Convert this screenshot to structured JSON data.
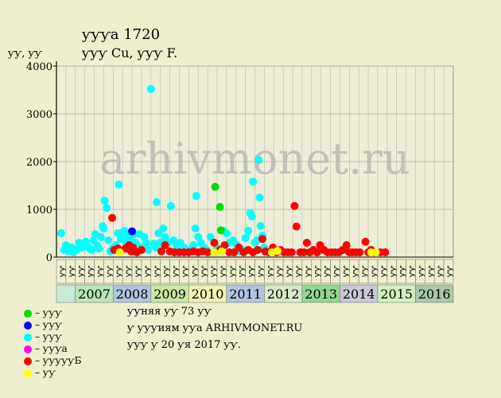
{
  "title": "ƴƴƴa 1720",
  "subtitle": "ƴƴƴ Cu, ƴƴƴ F.",
  "y_unit": "ƴƴ, ƴƴ",
  "watermark": "arhivmonet.ru",
  "legend": [
    {
      "label": "– ƴƴƴ",
      "color": "#00dd00"
    },
    {
      "label": "– ƴƴƴ",
      "color": "#0000ff"
    },
    {
      "label": "– ƴƴƴ",
      "color": "#00ffff"
    },
    {
      "label": "– ƴƴƴa",
      "color": "#ff00ff"
    },
    {
      "label": "– ƴƴƴƴƴБ",
      "color": "#ff0000"
    },
    {
      "label": "– ƴƴ",
      "color": "#ffff00"
    }
  ],
  "notes": [
    "ƴƴняя ƴƴ 73 ƴƴ",
    "ƴ ƴƴƴиям ƴƴa ARHIVMONET.RU",
    "ƴƴƴ ƴ 20 ƴя 2017 ƴƴ."
  ],
  "chart_data": {
    "type": "scatter",
    "ylim": [
      0,
      4000
    ],
    "yticks": [
      0,
      1000,
      2000,
      3000,
      4000
    ],
    "grid": true,
    "years": [
      {
        "label": "2007",
        "color": "#b8e6b8"
      },
      {
        "label": "2008",
        "color": "#b0c4de"
      },
      {
        "label": "2009",
        "color": "#c8e6a0"
      },
      {
        "label": "2010",
        "color": "#f0f0b0"
      },
      {
        "label": "2011",
        "color": "#b0c4de"
      },
      {
        "label": "2012",
        "color": "#d8e8c8"
      },
      {
        "label": "2013",
        "color": "#90d890"
      },
      {
        "label": "2014",
        "color": "#c8c8d8"
      },
      {
        "label": "2015",
        "color": "#d0f0c0"
      },
      {
        "label": "2016",
        "color": "#a8c8a8"
      }
    ],
    "first_block_color": "#c8e8d8",
    "quarter_labels": [
      "ƴƴ",
      "ƴƴ",
      "ƴƴ",
      "ƴƴ",
      "ƴƴ",
      "ƴƴ",
      "ƴƴ",
      "ƴƴ",
      "ƴƴ",
      "ƴƴ",
      "ƴƴ",
      "ƴƴ",
      "ƴƴ",
      "ƴƴ",
      "ƴƴ",
      "ƴƴ",
      "ƴƴ",
      "ƴƴ",
      "ƴƴ",
      "ƴƴ",
      "ƴƴ",
      "ƴƴ",
      "ƴƴ",
      "ƴƴ",
      "ƴƴ",
      "ƴƴ",
      "ƴƴ",
      "ƴƴ",
      "ƴƴ",
      "ƴƴ",
      "ƴƴ",
      "ƴƴ",
      "ƴƴ",
      "ƴƴ",
      "ƴƴ",
      "ƴƴ",
      "ƴƴ",
      "ƴƴ",
      "ƴƴ",
      "ƴƴ",
      "ƴƴ",
      "ƴƴ"
    ],
    "series": [
      {
        "name": "– ƴƴƴ",
        "color": "#00ffff",
        "points": [
          [
            0.0,
            500
          ],
          [
            0.3,
            150
          ],
          [
            0.5,
            250
          ],
          [
            0.8,
            120
          ],
          [
            1.1,
            200
          ],
          [
            1.3,
            100
          ],
          [
            1.6,
            150
          ],
          [
            1.9,
            300
          ],
          [
            2.2,
            200
          ],
          [
            2.6,
            320
          ],
          [
            2.9,
            200
          ],
          [
            3.2,
            150
          ],
          [
            3.4,
            350
          ],
          [
            3.6,
            480
          ],
          [
            3.8,
            250
          ],
          [
            4.0,
            180
          ],
          [
            4.2,
            420
          ],
          [
            4.4,
            650
          ],
          [
            4.5,
            600
          ],
          [
            4.6,
            1180
          ],
          [
            4.8,
            1030
          ],
          [
            5.0,
            350
          ],
          [
            5.2,
            120
          ],
          [
            5.5,
            200
          ],
          [
            5.8,
            250
          ],
          [
            6.0,
            500
          ],
          [
            6.1,
            1520
          ],
          [
            6.3,
            380
          ],
          [
            6.5,
            520
          ],
          [
            6.7,
            550
          ],
          [
            6.9,
            300
          ],
          [
            7.1,
            420
          ],
          [
            7.3,
            350
          ],
          [
            7.5,
            500
          ],
          [
            7.7,
            480
          ],
          [
            7.9,
            300
          ],
          [
            8.1,
            200
          ],
          [
            8.3,
            480
          ],
          [
            8.5,
            200
          ],
          [
            8.8,
            420
          ],
          [
            9.0,
            300
          ],
          [
            9.2,
            150
          ],
          [
            9.5,
            3520
          ],
          [
            9.8,
            280
          ],
          [
            10.0,
            200
          ],
          [
            10.1,
            1150
          ],
          [
            10.3,
            500
          ],
          [
            10.5,
            300
          ],
          [
            10.8,
            600
          ],
          [
            11.0,
            420
          ],
          [
            11.3,
            300
          ],
          [
            11.6,
            1070
          ],
          [
            11.9,
            350
          ],
          [
            12.2,
            250
          ],
          [
            12.6,
            300
          ],
          [
            13.0,
            200
          ],
          [
            13.3,
            150
          ],
          [
            13.7,
            150
          ],
          [
            14.0,
            250
          ],
          [
            14.2,
            600
          ],
          [
            14.3,
            1280
          ],
          [
            14.5,
            420
          ],
          [
            14.8,
            300
          ],
          [
            15.1,
            200
          ],
          [
            15.4,
            150
          ],
          [
            15.8,
            420
          ],
          [
            16.2,
            300
          ],
          [
            16.5,
            200
          ],
          [
            16.8,
            150
          ],
          [
            17.2,
            550
          ],
          [
            17.5,
            500
          ],
          [
            17.8,
            300
          ],
          [
            18.2,
            350
          ],
          [
            18.6,
            250
          ],
          [
            18.9,
            120
          ],
          [
            19.2,
            150
          ],
          [
            19.5,
            400
          ],
          [
            19.8,
            550
          ],
          [
            20.0,
            920
          ],
          [
            20.2,
            850
          ],
          [
            20.3,
            1580
          ],
          [
            20.5,
            300
          ],
          [
            20.7,
            350
          ],
          [
            20.9,
            2030
          ],
          [
            21.0,
            1250
          ],
          [
            21.1,
            650
          ],
          [
            21.3,
            450
          ],
          [
            21.5,
            200
          ]
        ]
      },
      {
        "name": "– ƴƴƴƴƴБ",
        "color": "#ff0000",
        "points": [
          [
            5.4,
            820
          ],
          [
            5.6,
            150
          ],
          [
            6.0,
            180
          ],
          [
            6.8,
            180
          ],
          [
            7.2,
            250
          ],
          [
            7.4,
            120
          ],
          [
            7.6,
            200
          ],
          [
            8.0,
            100
          ],
          [
            8.5,
            150
          ],
          [
            10.6,
            120
          ],
          [
            11.0,
            250
          ],
          [
            11.5,
            120
          ],
          [
            12.0,
            100
          ],
          [
            12.5,
            100
          ],
          [
            13.0,
            100
          ],
          [
            13.5,
            100
          ],
          [
            14.0,
            120
          ],
          [
            14.5,
            100
          ],
          [
            15.0,
            120
          ],
          [
            15.5,
            100
          ],
          [
            16.2,
            300
          ],
          [
            16.8,
            150
          ],
          [
            17.3,
            250
          ],
          [
            17.8,
            100
          ],
          [
            18.3,
            100
          ],
          [
            18.8,
            200
          ],
          [
            19.3,
            100
          ],
          [
            19.8,
            150
          ],
          [
            20.3,
            100
          ],
          [
            20.8,
            150
          ],
          [
            21.3,
            380
          ],
          [
            21.6,
            120
          ],
          [
            22.0,
            100
          ],
          [
            22.4,
            200
          ],
          [
            22.8,
            100
          ],
          [
            23.2,
            150
          ],
          [
            23.6,
            100
          ],
          [
            24.0,
            100
          ],
          [
            24.4,
            100
          ],
          [
            24.7,
            1070
          ],
          [
            24.9,
            640
          ],
          [
            25.3,
            100
          ],
          [
            25.7,
            100
          ],
          [
            26.0,
            300
          ],
          [
            26.3,
            100
          ],
          [
            26.7,
            150
          ],
          [
            27.1,
            100
          ],
          [
            27.4,
            250
          ],
          [
            27.8,
            150
          ],
          [
            28.2,
            100
          ],
          [
            28.6,
            100
          ],
          [
            29.0,
            100
          ],
          [
            29.4,
            100
          ],
          [
            29.8,
            150
          ],
          [
            30.2,
            250
          ],
          [
            30.5,
            100
          ],
          [
            30.8,
            100
          ],
          [
            31.2,
            100
          ],
          [
            31.6,
            100
          ],
          [
            32.2,
            320
          ],
          [
            32.5,
            100
          ],
          [
            32.8,
            150
          ],
          [
            33.2,
            100
          ],
          [
            33.8,
            100
          ],
          [
            34.3,
            100
          ]
        ]
      },
      {
        "name": "– ƴƴƴ",
        "color": "#00dd00",
        "points": [
          [
            16.3,
            1470
          ],
          [
            16.8,
            1050
          ],
          [
            16.9,
            560
          ]
        ]
      },
      {
        "name": "– ƴƴƴ",
        "color": "#0000ff",
        "points": [
          [
            7.5,
            540
          ]
        ]
      },
      {
        "name": "– ƴƴ",
        "color": "#ffff00",
        "points": [
          [
            6.2,
            100
          ],
          [
            16.2,
            100
          ],
          [
            17.0,
            120
          ],
          [
            22.3,
            100
          ],
          [
            22.9,
            130
          ],
          [
            32.8,
            100
          ],
          [
            33.3,
            100
          ]
        ]
      }
    ]
  }
}
